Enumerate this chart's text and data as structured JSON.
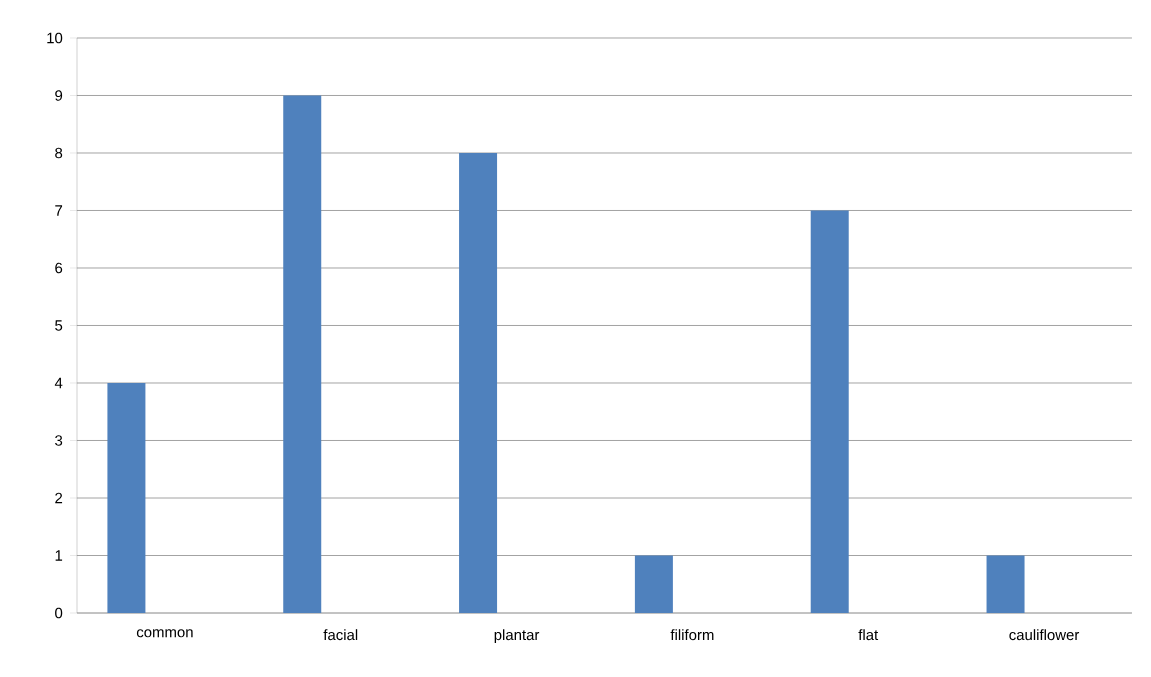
{
  "chart_data": {
    "type": "bar",
    "categories": [
      "common",
      "facial",
      "plantar",
      "filiform",
      "flat",
      "cauliflower"
    ],
    "values": [
      4,
      9,
      8,
      1,
      7,
      1
    ],
    "color": "#4f81bd",
    "ylim": [
      0,
      10
    ],
    "yticks": [
      0,
      1,
      2,
      3,
      4,
      5,
      6,
      7,
      8,
      9,
      10
    ],
    "grid": "y"
  }
}
